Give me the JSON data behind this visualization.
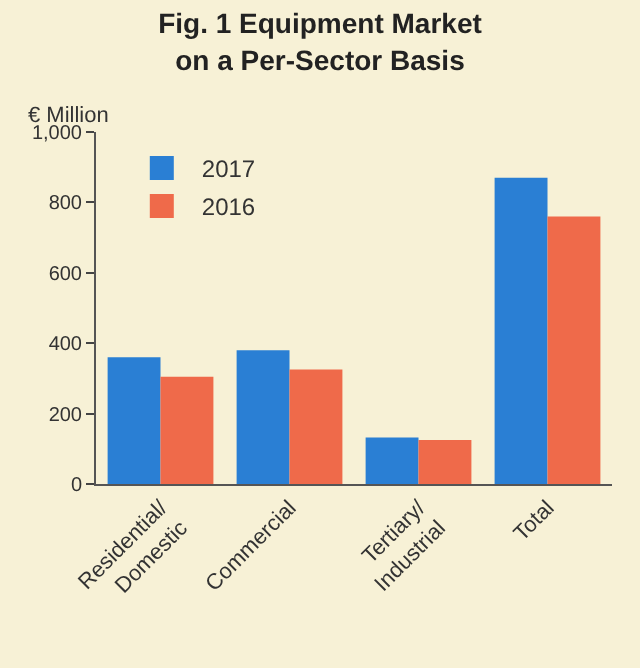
{
  "chart_data": {
    "type": "bar",
    "title": "Fig. 1 Equipment Market\non a Per-Sector Basis",
    "ylabel": "€ Million",
    "categories": [
      "Residential/\nDomestic",
      "Commercial",
      "Tertiary/\nIndustrial",
      "Total"
    ],
    "series": [
      {
        "name": "2017",
        "color": "#2a7fd4",
        "values": [
          360,
          380,
          132,
          870
        ]
      },
      {
        "name": "2016",
        "color": "#ef6a4a",
        "values": [
          305,
          325,
          125,
          760
        ]
      }
    ],
    "ylim": [
      0,
      1000
    ],
    "yticks": [
      0,
      200,
      400,
      600,
      800,
      {
        "value": 1000,
        "label": "1,000"
      }
    ],
    "grid": false,
    "legend": "top left"
  }
}
